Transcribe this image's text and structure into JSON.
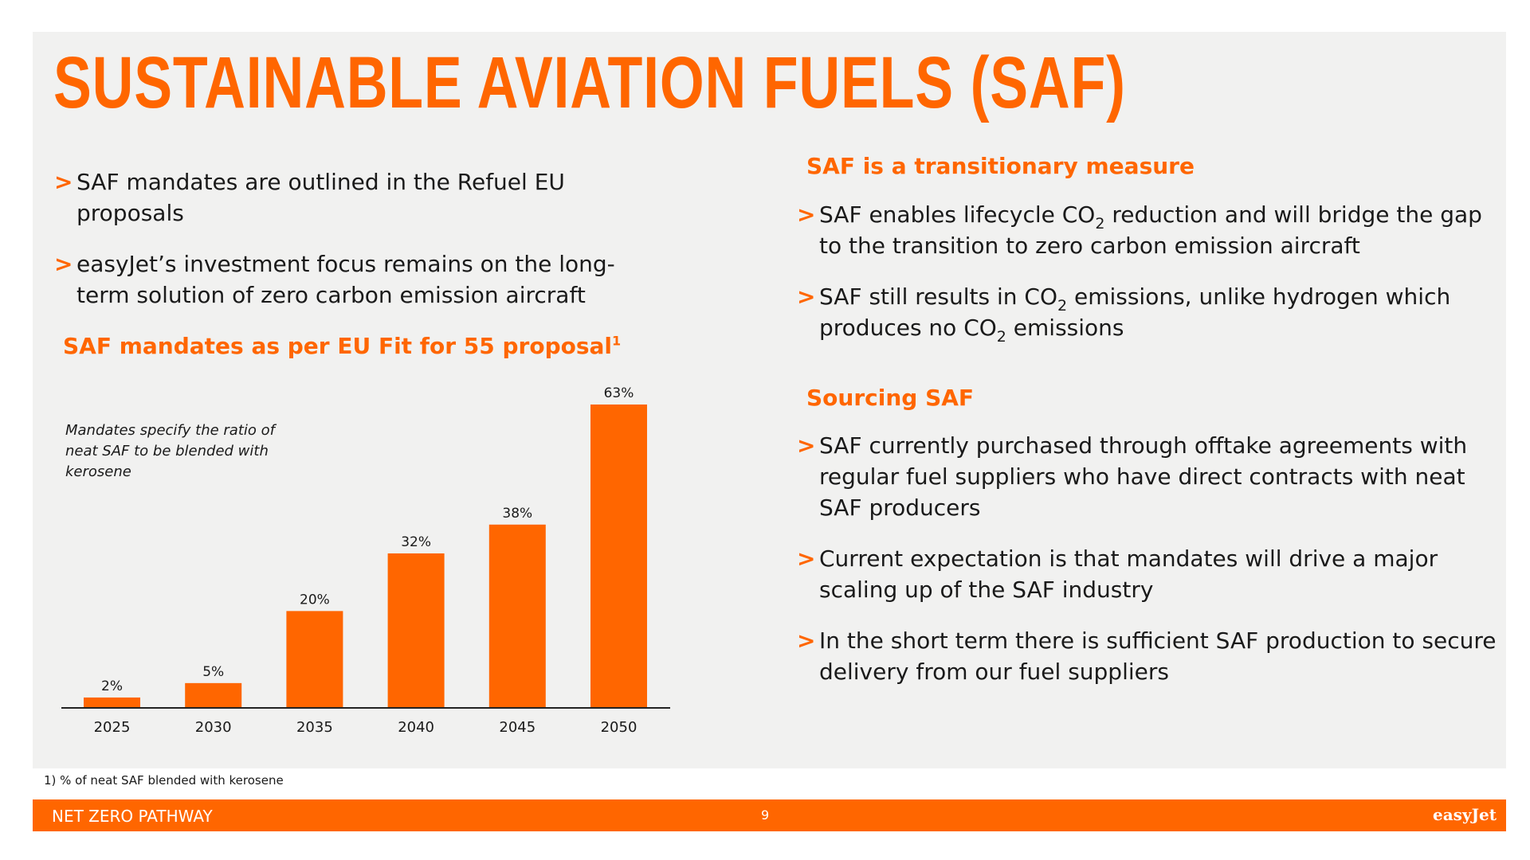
{
  "title": "SUSTAINABLE AVIATION FUELS (SAF)",
  "left": {
    "bullets": [
      {
        "marker": ">",
        "text": "SAF mandates are outlined in the Refuel EU proposals"
      },
      {
        "marker": ">",
        "text": "easyJet’s investment focus remains on the long-term solution of zero carbon emission aircraft"
      }
    ],
    "chart_heading": "SAF mandates as per EU Fit for 55 proposal",
    "chart_heading_sup": "1",
    "chart_note": "Mandates specify the ratio of neat SAF to be blended with kerosene"
  },
  "right": {
    "heading1": "SAF is a transitionary measure",
    "b1": {
      "marker": ">",
      "a": "SAF enables lifecycle CO",
      "sub": "2",
      "b": " reduction and will bridge the gap to the transition to zero carbon emission aircraft"
    },
    "b2": {
      "marker": ">",
      "a": "SAF still results in CO",
      "sub1": "2",
      "b": " emissions, unlike hydrogen which produces no CO",
      "sub2": "2",
      "c": " emissions"
    },
    "heading2": "Sourcing SAF",
    "sourcing_bullets": [
      {
        "marker": ">",
        "text": "SAF currently purchased through offtake agreements with regular fuel suppliers who have direct contracts with neat SAF producers"
      },
      {
        "marker": ">",
        "text": "Current expectation is that mandates will drive a major scaling up of the SAF industry"
      },
      {
        "marker": ">",
        "text": "In the short term there is sufficient SAF production to secure delivery from our fuel suppliers"
      }
    ]
  },
  "chart_data": {
    "type": "bar",
    "categories": [
      "2025",
      "2030",
      "2035",
      "2040",
      "2045",
      "2050"
    ],
    "values": [
      2,
      5,
      20,
      32,
      38,
      63
    ],
    "data_labels": [
      "2%",
      "5%",
      "20%",
      "32%",
      "38%",
      "63%"
    ],
    "ylim": [
      0,
      63
    ],
    "grid": false,
    "legend": "none",
    "color": "#ff6600"
  },
  "footnote": "1) % of neat SAF blended with kerosene",
  "footer": {
    "section": "NET ZERO PATHWAY",
    "page": "9",
    "logo": "easyJet"
  },
  "colors": {
    "accent": "#ff6600",
    "panel": "#f1f1f0"
  }
}
